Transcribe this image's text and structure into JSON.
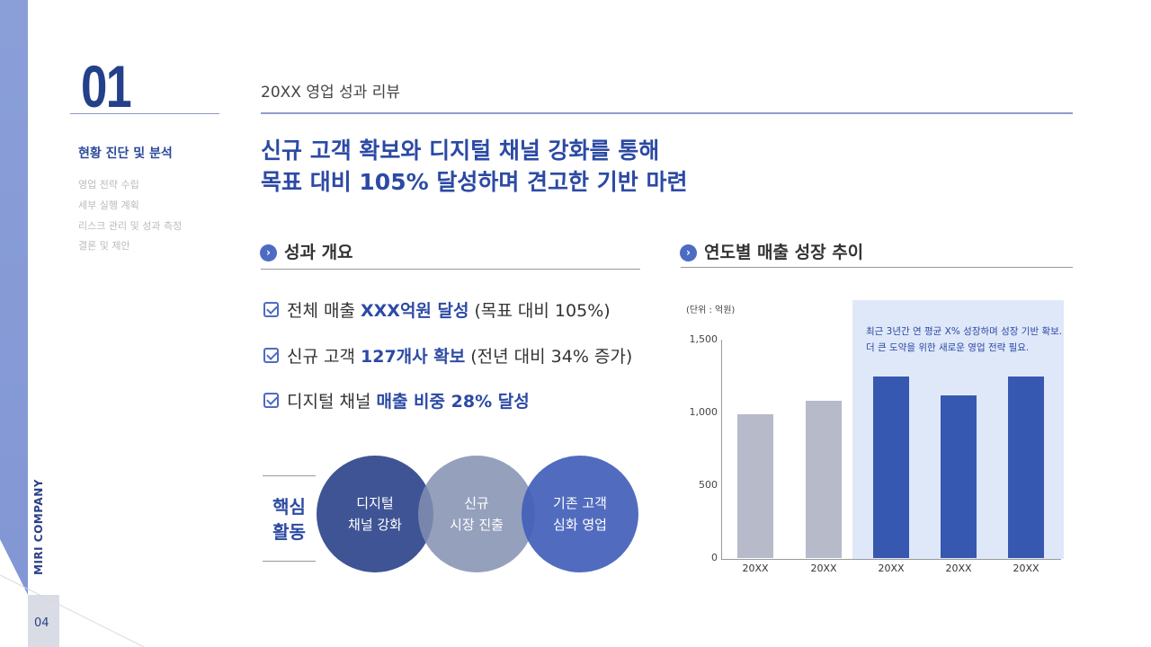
{
  "sidebar": {
    "company": "MIRI COMPANY",
    "page_number": "04",
    "section_number": "01",
    "active_item": "현황 진단 및 분석",
    "items": [
      "영업 전략 수립",
      "세부 실행 계획",
      "리스크 관리 및 성과 측정",
      "결론 및 제안"
    ]
  },
  "header": {
    "subtitle": "20XX 영업 성과 리뷰",
    "headline_1": "신규 고객 확보와 디지털 채널 강화를 통해",
    "headline_2": "목표 대비 105% 달성하며 견고한 기반 마련"
  },
  "overview": {
    "title": "성과 개요",
    "icon": "chevron-right-icon",
    "bullets": [
      {
        "pre": "전체 매출 ",
        "em": "XXX억원 달성",
        "post": " (목표 대비 105%)"
      },
      {
        "pre": "신규 고객 ",
        "em": "127개사 확보",
        "post": " (전년 대비 34% 증가)"
      },
      {
        "pre": "디지털 채널 ",
        "em": "매출 비중 28% 달성",
        "post": ""
      }
    ],
    "core_label_1": "핵심",
    "core_label_2": "활동",
    "circles": [
      {
        "l1": "디지털",
        "l2": "채널 강화",
        "color": "#3f5494"
      },
      {
        "l1": "신규",
        "l2": "시장 진출",
        "color": "#8d99b8"
      },
      {
        "l1": "기존 고객",
        "l2": "심화 영업",
        "color": "#4a67bd"
      }
    ]
  },
  "chart_section": {
    "title": "연도별 매출 성장 추이",
    "unit": "(단위 : 억원)",
    "note_1": "최근 3년간 연 평균 X% 성장하며 성장 기반 확보.",
    "note_2": "더 큰 도약을 위한 새로운 영업 전략 필요."
  },
  "chart_data": {
    "type": "bar",
    "categories": [
      "20XX",
      "20XX",
      "20XX",
      "20XX",
      "20XX"
    ],
    "values": [
      990,
      1080,
      1250,
      1120,
      1250
    ],
    "ylim": [
      0,
      1500
    ],
    "yticks": [
      "0",
      "500",
      "1,000",
      "1,500"
    ],
    "ylabel": "(단위 : 억원)",
    "grid": false,
    "bar_colors": [
      "#b6bac9",
      "#b6bac9",
      "#3758b0",
      "#3758b0",
      "#3758b0"
    ],
    "highlight_bg": "#dfe8f9"
  },
  "colors": {
    "accent": "#2c4aa4",
    "sidebar": "#8196d4"
  }
}
